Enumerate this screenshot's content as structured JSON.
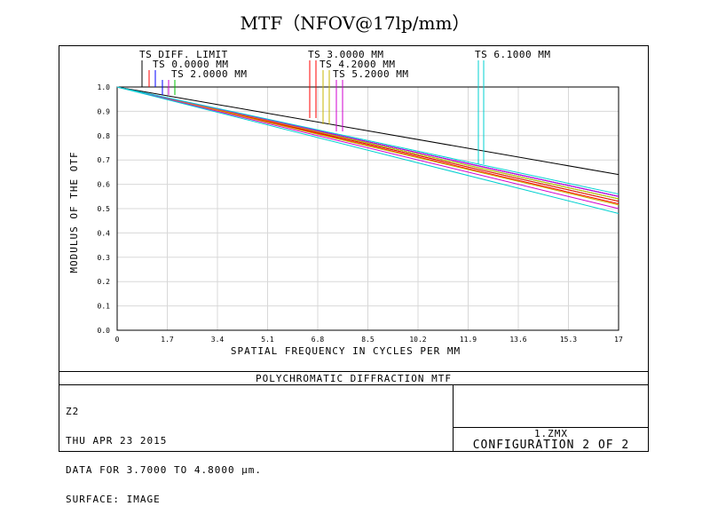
{
  "title": "MTF（NFOV@17lp/mm）",
  "footer_title": "POLYCHROMATIC DIFFRACTION MTF",
  "info_lines": [
    "Z2",
    "THU APR 23 2015",
    "DATA FOR 3.7000 TO 4.8000 μm.",
    "SURFACE: IMAGE"
  ],
  "file_name": "1.ZMX",
  "configuration": "CONFIGURATION 2 OF 2",
  "colors": {
    "diff": "#000000",
    "f0": "#0000ff",
    "f2": "#00c000",
    "f3": "#ff0000",
    "f42": "#c8b400",
    "f52": "#d000d0",
    "f61": "#00d0d0"
  },
  "chart_data": {
    "type": "line",
    "xlabel": "SPATIAL FREQUENCY IN CYCLES PER MM",
    "ylabel": "MODULUS OF THE OTF",
    "xlim": [
      0,
      17
    ],
    "ylim": [
      0,
      1
    ],
    "x_ticks": [
      "0",
      "1.7",
      "3.4",
      "5.1",
      "6.8",
      "8.5",
      "10.2",
      "11.9",
      "13.6",
      "15.3",
      "17"
    ],
    "y_ticks": [
      "0.0",
      "0.1",
      "0.2",
      "0.3",
      "0.4",
      "0.5",
      "0.6",
      "0.7",
      "0.8",
      "0.9",
      "1.0"
    ],
    "grid": true,
    "legend": [
      {
        "label": "TS DIFF. LIMIT",
        "color_key": "diff"
      },
      {
        "label": "TS 0.0000 MM",
        "color_key": "f0"
      },
      {
        "label": "TS 2.0000 MM",
        "color_key": "f2"
      },
      {
        "label": "TS 3.0000 MM",
        "color_key": "f3"
      },
      {
        "label": "TS 4.2000 MM",
        "color_key": "f42"
      },
      {
        "label": "TS 5.2000 MM",
        "color_key": "f52"
      },
      {
        "label": "TS 6.1000 MM",
        "color_key": "f61"
      }
    ],
    "series": [
      {
        "color_key": "diff",
        "x": [
          0,
          17
        ],
        "y": [
          1.0,
          0.64
        ]
      },
      {
        "color_key": "f0",
        "x": [
          0,
          17
        ],
        "y": [
          1.0,
          0.55
        ]
      },
      {
        "color_key": "f0",
        "x": [
          0,
          17
        ],
        "y": [
          1.0,
          0.55
        ]
      },
      {
        "color_key": "f2",
        "x": [
          0,
          17
        ],
        "y": [
          1.0,
          0.53
        ]
      },
      {
        "color_key": "f2",
        "x": [
          0,
          17
        ],
        "y": [
          1.0,
          0.54
        ]
      },
      {
        "color_key": "f3",
        "x": [
          0,
          17
        ],
        "y": [
          1.0,
          0.52
        ]
      },
      {
        "color_key": "f3",
        "x": [
          0,
          17
        ],
        "y": [
          1.0,
          0.53
        ]
      },
      {
        "color_key": "f42",
        "x": [
          0,
          17
        ],
        "y": [
          1.0,
          0.515
        ]
      },
      {
        "color_key": "f42",
        "x": [
          0,
          17
        ],
        "y": [
          1.0,
          0.54
        ]
      },
      {
        "color_key": "f52",
        "x": [
          0,
          17
        ],
        "y": [
          1.0,
          0.5
        ]
      },
      {
        "color_key": "f52",
        "x": [
          0,
          17
        ],
        "y": [
          1.0,
          0.55
        ]
      },
      {
        "color_key": "f61",
        "x": [
          0,
          17
        ],
        "y": [
          1.0,
          0.48
        ]
      },
      {
        "color_key": "f61",
        "x": [
          0,
          17
        ],
        "y": [
          1.0,
          0.56
        ]
      }
    ]
  }
}
